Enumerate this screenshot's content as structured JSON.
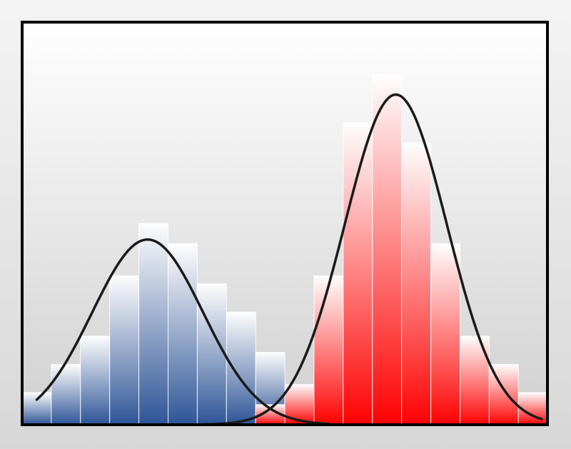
{
  "chart_data": {
    "type": "bar",
    "title": "",
    "xlabel": "",
    "ylabel": "",
    "ylim": [
      0,
      100
    ],
    "grid": false,
    "legend": "none",
    "series": [
      {
        "color_top": "#ffffff",
        "color_bottom": "#2d5496",
        "values": [
          8,
          15,
          22,
          37,
          50,
          45,
          35,
          28,
          18
        ]
      },
      {
        "color_top": "#ffffff",
        "color_bottom": "#ff0000",
        "values": [
          5,
          10,
          37,
          75,
          87,
          70,
          45,
          22,
          15,
          8
        ]
      }
    ],
    "fit_curves": [
      {
        "series": 0,
        "color": "#1a1a1a",
        "peak": 46,
        "center_bin": 4.3,
        "spread_bins": 1.9
      },
      {
        "series": 1,
        "color": "#1a1a1a",
        "peak": 82,
        "center_bin": 12.8,
        "spread_bins": 1.75
      }
    ],
    "frame_color": "#000000",
    "background": "#e3e3e3"
  }
}
